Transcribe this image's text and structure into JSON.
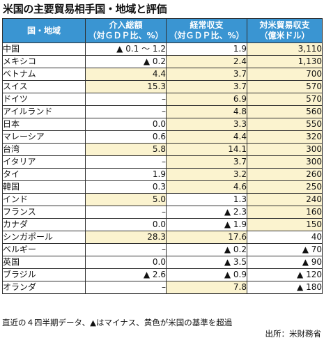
{
  "title": "米国の主要貿易相手国・地域と評価",
  "headers": {
    "col0": "国・地域",
    "col1_line1": "介入総額",
    "col1_line2": "（対ＧＤＰ比、%）",
    "col2_line1": "経常収支",
    "col2_line2": "（対ＧＤＰ比、%）",
    "col3_line1": "対米貿易収支",
    "col3_line2": "（億米ドル）"
  },
  "highlight_color": "#fbf3cf",
  "header_color": "#3a95d2",
  "rows": [
    {
      "name": "中国",
      "intervention": "▲ 0.1 ～ 1.2",
      "current": "1.9",
      "trade": "3,110",
      "hl": [
        false,
        false,
        true
      ]
    },
    {
      "name": "メキシコ",
      "intervention": "▲ 0.2",
      "current": "2.4",
      "trade": "1,130",
      "hl": [
        false,
        true,
        true
      ]
    },
    {
      "name": "ベトナム",
      "intervention": "4.4",
      "current": "3.7",
      "trade": "700",
      "hl": [
        true,
        true,
        true
      ]
    },
    {
      "name": "スイス",
      "intervention": "15.3",
      "current": "3.7",
      "trade": "570",
      "hl": [
        true,
        true,
        true
      ]
    },
    {
      "name": "ドイツ",
      "intervention": "–",
      "current": "6.9",
      "trade": "570",
      "hl": [
        false,
        true,
        true
      ]
    },
    {
      "name": "アイルランド",
      "intervention": "–",
      "current": "4.8",
      "trade": "560",
      "hl": [
        false,
        true,
        true
      ]
    },
    {
      "name": "日本",
      "intervention": "0.0",
      "current": "3.3",
      "trade": "550",
      "hl": [
        false,
        true,
        true
      ]
    },
    {
      "name": "マレーシア",
      "intervention": "0.6",
      "current": "4.4",
      "trade": "320",
      "hl": [
        false,
        true,
        true
      ]
    },
    {
      "name": "台湾",
      "intervention": "5.8",
      "current": "14.1",
      "trade": "300",
      "hl": [
        true,
        true,
        true
      ]
    },
    {
      "name": "イタリア",
      "intervention": "–",
      "current": "3.7",
      "trade": "300",
      "hl": [
        false,
        true,
        true
      ]
    },
    {
      "name": "タイ",
      "intervention": "1.9",
      "current": "3.2",
      "trade": "260",
      "hl": [
        false,
        true,
        true
      ]
    },
    {
      "name": "韓国",
      "intervention": "0.3",
      "current": "4.6",
      "trade": "250",
      "hl": [
        false,
        true,
        true
      ]
    },
    {
      "name": "インド",
      "intervention": "5.0",
      "current": "1.3",
      "trade": "240",
      "hl": [
        true,
        false,
        true
      ]
    },
    {
      "name": "フランス",
      "intervention": "–",
      "current": "▲ 2.3",
      "trade": "160",
      "hl": [
        false,
        false,
        true
      ]
    },
    {
      "name": "カナダ",
      "intervention": "0.0",
      "current": "▲ 1.9",
      "trade": "150",
      "hl": [
        false,
        false,
        true
      ]
    },
    {
      "name": "シンガポール",
      "intervention": "28.3",
      "current": "17.6",
      "trade": "40",
      "hl": [
        true,
        true,
        false
      ]
    },
    {
      "name": "ベルギー",
      "intervention": "–",
      "current": "▲ 0.2",
      "trade": "▲ 70",
      "hl": [
        false,
        false,
        false
      ]
    },
    {
      "name": "英国",
      "intervention": "0.0",
      "current": "▲ 3.5",
      "trade": "▲ 90",
      "hl": [
        false,
        false,
        false
      ]
    },
    {
      "name": "ブラジル",
      "intervention": "▲ 2.6",
      "current": "▲ 0.9",
      "trade": "▲ 120",
      "hl": [
        false,
        false,
        false
      ]
    },
    {
      "name": "オランダ",
      "intervention": "–",
      "current": "7.8",
      "trade": "▲ 180",
      "hl": [
        false,
        true,
        false
      ]
    }
  ],
  "footnote": "直近の４四半期データ、▲はマイナス、黄色が米国の基準を超過",
  "source": "出所：米財務省"
}
